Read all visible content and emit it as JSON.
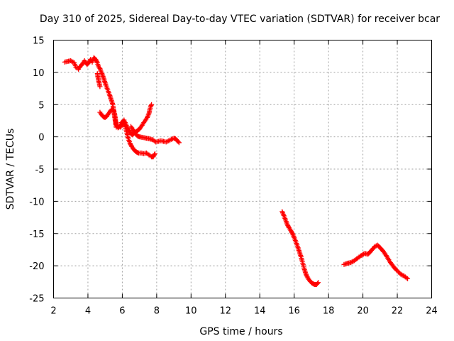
{
  "chart_data": {
    "type": "scatter",
    "title": "Day 310 of 2025, Sidereal Day-to-day VTEC variation (SDTVAR) for receiver bcar",
    "xlabel": "GPS time / hours",
    "ylabel": "SDTVAR / TECUs",
    "xlim": [
      2,
      24
    ],
    "ylim": [
      -25,
      15
    ],
    "xticks": [
      2,
      4,
      6,
      8,
      10,
      12,
      14,
      16,
      18,
      20,
      22,
      24
    ],
    "yticks": [
      -25,
      -20,
      -15,
      -10,
      -5,
      0,
      5,
      10,
      15
    ],
    "grid": true,
    "marker": "plus",
    "color": "#ff0000",
    "series": [
      {
        "name": "track-1",
        "x": [
          2.65,
          2.8,
          3.0,
          3.2,
          3.3,
          3.45,
          3.55,
          3.7,
          3.8,
          3.95,
          4.05,
          4.15,
          4.25,
          4.35,
          4.45,
          4.55,
          4.6,
          4.7,
          4.75,
          4.85,
          4.95,
          5.05,
          5.15,
          5.25,
          5.35,
          5.45,
          5.5,
          5.55,
          5.6,
          5.65
        ],
        "y": [
          11.6,
          11.7,
          11.8,
          11.5,
          10.8,
          10.5,
          10.9,
          11.4,
          11.8,
          11.2,
          11.5,
          12.0,
          11.6,
          12.3,
          12.0,
          11.5,
          11.0,
          10.6,
          10.2,
          9.6,
          8.8,
          8.0,
          7.3,
          6.6,
          5.8,
          5.0,
          4.0,
          3.2,
          2.3,
          1.5
        ]
      },
      {
        "name": "track-2",
        "x": [
          4.55,
          4.6,
          4.65,
          4.7
        ],
        "y": [
          9.8,
          9.0,
          8.4,
          7.8
        ]
      },
      {
        "name": "track-3",
        "x": [
          4.7,
          4.8,
          4.9,
          5.0,
          5.1,
          5.2,
          5.3,
          5.4,
          5.5,
          5.55,
          5.6,
          5.65,
          5.75,
          5.85,
          5.95,
          6.05,
          6.15,
          6.25,
          6.35,
          6.45,
          6.55,
          6.65,
          6.75,
          6.85,
          6.95,
          7.1,
          7.25,
          7.4,
          7.55,
          7.7,
          7.8,
          7.9
        ],
        "y": [
          3.8,
          3.4,
          3.1,
          3.0,
          3.2,
          3.6,
          4.0,
          4.3,
          4.1,
          3.6,
          2.8,
          2.0,
          1.4,
          1.6,
          2.2,
          2.4,
          1.8,
          0.8,
          -0.3,
          -1.0,
          -1.5,
          -1.9,
          -2.2,
          -2.4,
          -2.5,
          -2.5,
          -2.6,
          -2.5,
          -2.8,
          -3.1,
          -3.1,
          -2.6
        ]
      },
      {
        "name": "track-4",
        "x": [
          5.9,
          6.0,
          6.1,
          6.2,
          6.3,
          6.4,
          6.5,
          6.6,
          6.7,
          6.8,
          6.9,
          7.0,
          7.15,
          7.3,
          7.45,
          7.55,
          7.6,
          7.65,
          7.7
        ],
        "y": [
          1.5,
          2.0,
          2.6,
          2.0,
          1.4,
          1.0,
          0.5,
          0.3,
          0.6,
          0.8,
          1.0,
          1.2,
          1.8,
          2.4,
          3.0,
          3.6,
          4.2,
          4.7,
          5.0
        ]
      },
      {
        "name": "track-5",
        "x": [
          6.5,
          6.6,
          6.7,
          6.8,
          6.9,
          7.0,
          7.2,
          7.4,
          7.6,
          7.8,
          7.95,
          8.1,
          8.25,
          8.4,
          8.55,
          8.7,
          8.85,
          9.0,
          9.1,
          9.2,
          9.3
        ],
        "y": [
          1.6,
          1.2,
          0.8,
          0.4,
          0.1,
          0.0,
          -0.1,
          -0.2,
          -0.3,
          -0.5,
          -0.8,
          -0.7,
          -0.6,
          -0.7,
          -0.8,
          -0.6,
          -0.4,
          -0.2,
          -0.3,
          -0.6,
          -0.9
        ]
      },
      {
        "name": "track-6",
        "x": [
          15.3,
          15.4,
          15.5,
          15.6,
          15.7,
          15.8,
          15.9,
          16.0,
          16.1,
          16.2,
          16.3,
          16.4,
          16.5,
          16.6,
          16.7,
          16.8,
          16.9,
          17.0,
          17.1,
          17.2,
          17.3,
          17.4
        ],
        "y": [
          -11.6,
          -12.2,
          -12.9,
          -13.6,
          -14.1,
          -14.5,
          -15.0,
          -15.6,
          -16.3,
          -17.0,
          -17.8,
          -18.6,
          -19.6,
          -20.6,
          -21.4,
          -21.9,
          -22.3,
          -22.6,
          -22.8,
          -22.9,
          -22.9,
          -22.6
        ]
      },
      {
        "name": "track-7",
        "x": [
          18.9,
          19.1,
          19.3,
          19.5,
          19.7,
          19.9,
          20.1,
          20.3,
          20.5,
          20.7,
          20.85,
          21.0,
          21.2,
          21.4,
          21.6,
          21.8,
          22.0,
          22.2,
          22.4,
          22.6
        ],
        "y": [
          -19.8,
          -19.6,
          -19.5,
          -19.2,
          -18.8,
          -18.4,
          -18.1,
          -18.2,
          -17.6,
          -17.0,
          -16.8,
          -17.2,
          -17.8,
          -18.6,
          -19.5,
          -20.2,
          -20.8,
          -21.3,
          -21.6,
          -22.0
        ]
      }
    ]
  }
}
